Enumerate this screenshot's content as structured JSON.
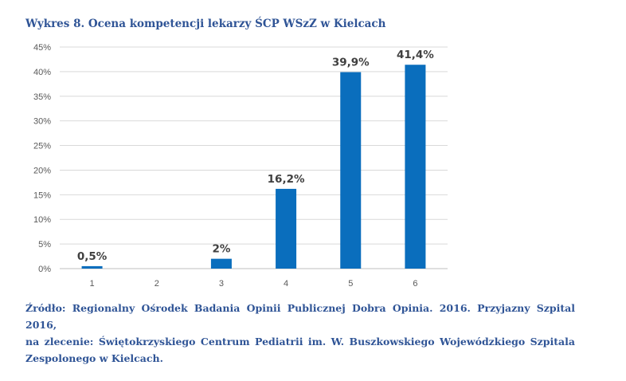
{
  "title": "Wykres 8. Ocena kompetencji lekarzy ŚCP WSzZ w Kielcach",
  "source_lines": [
    "Źródło: Regionalny Ośrodek Badania Opinii Publicznej Dobra Opinia. 2016. Przyjazny Szpital 2016,",
    "na zlecenie: Świętokrzyskiego Centrum Pediatrii im. W. Buszkowskiego Wojewódzkiego Szpitala",
    "Zespolonego w Kielcach."
  ],
  "colors": {
    "bar": "#0a6ebd",
    "grid": "#d9d9d9",
    "title": "#2f5496"
  },
  "chart_data": {
    "type": "bar",
    "categories": [
      "1",
      "2",
      "3",
      "4",
      "5",
      "6"
    ],
    "values": [
      0.5,
      0,
      2,
      16.2,
      39.9,
      41.4
    ],
    "data_labels": [
      "0,5%",
      "",
      "2%",
      "16,2%",
      "39,9%",
      "41,4%"
    ],
    "yticks": [
      "0%",
      "5%",
      "10%",
      "15%",
      "20%",
      "25%",
      "30%",
      "35%",
      "40%",
      "45%"
    ],
    "ylim": [
      0,
      45
    ],
    "grid": true,
    "legend": false
  }
}
